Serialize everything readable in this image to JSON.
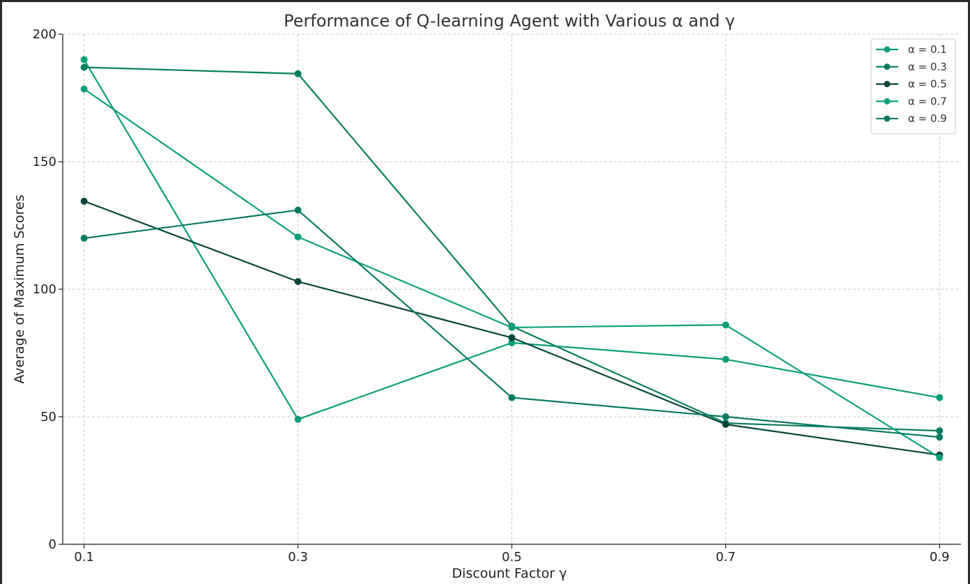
{
  "chart_data": {
    "type": "line",
    "title": "Performance of Q-learning Agent with Various α and γ",
    "xlabel": "Discount Factor γ",
    "ylabel": "Average of Maximum Scores",
    "x": [
      0.1,
      0.3,
      0.5,
      0.7,
      0.9
    ],
    "x_tick_labels": [
      "0.1",
      "0.3",
      "0.5",
      "0.7",
      "0.9"
    ],
    "y_ticks": [
      0,
      50,
      100,
      150,
      200
    ],
    "y_tick_labels": [
      "0",
      "50",
      "100",
      "150",
      "200"
    ],
    "ylim": [
      0,
      200
    ],
    "grid": true,
    "legend_position": "top-right",
    "series": [
      {
        "name": "α = 0.1",
        "color": "#0a9e78",
        "values": [
          190,
          49,
          79,
          72.5,
          57.5
        ]
      },
      {
        "name": "α = 0.3",
        "color": "#087d5f",
        "values": [
          187,
          184.5,
          85.5,
          47.5,
          44.5
        ]
      },
      {
        "name": "α = 0.5",
        "color": "#07473a",
        "values": [
          134.5,
          103,
          81,
          47,
          35
        ]
      },
      {
        "name": "α = 0.7",
        "color": "#0aa07a",
        "values": [
          178.5,
          120.5,
          85,
          86,
          34
        ]
      },
      {
        "name": "α = 0.9",
        "color": "#0a7a62",
        "values": [
          120,
          131,
          57.5,
          50,
          42
        ]
      }
    ]
  }
}
